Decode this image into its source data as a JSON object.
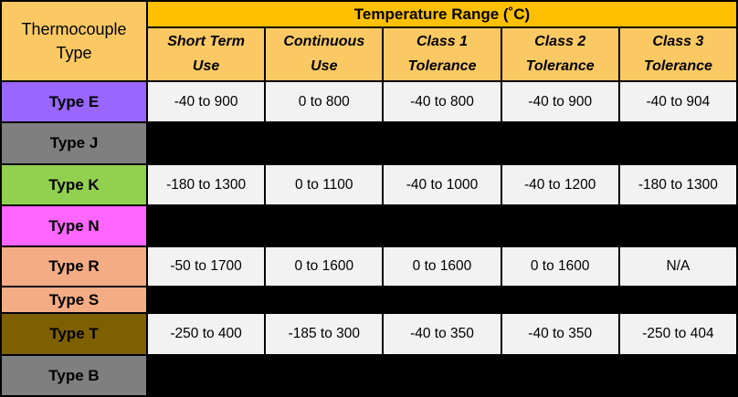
{
  "table": {
    "corner_header": "Thermocouple Type",
    "range_header": "Temperature Range (˚C)",
    "sub_headers": [
      "Short Term Use",
      "Continuous Use",
      "Class 1 Tolerance",
      "Class 2 Tolerance",
      "Class 3 Tolerance"
    ],
    "colors": {
      "range_header_bg": "#FFC000",
      "header_bg": "#FBC963",
      "data_cell_bg": "#F2F2F2",
      "blacked_out_bg": "#000000",
      "border": "#000000",
      "text": "#000000",
      "type_e_bg": "#9966FF",
      "type_j_bg": "#7F7F7F",
      "type_k_bg": "#92D050",
      "type_n_bg": "#FF66FF",
      "type_r_bg": "#F4AC84",
      "type_s_bg": "#F4AC84",
      "type_t_bg": "#7F6000",
      "type_b_bg": "#7F7F7F"
    },
    "rows": [
      {
        "type": "Type E",
        "type_bg": "#9966FF",
        "cell_bg": "#F2F2F2",
        "values": [
          "-40 to 900",
          "0 to 800",
          "-40 to 800",
          "-40 to 900",
          "-40 to 904"
        ]
      },
      {
        "type": "Type J",
        "type_bg": "#7F7F7F",
        "cell_bg": "#000000",
        "values": [
          "",
          "",
          "",
          "",
          ""
        ]
      },
      {
        "type": "Type K",
        "type_bg": "#92D050",
        "cell_bg": "#F2F2F2",
        "values": [
          "-180 to 1300",
          "0 to 1100",
          "-40 to 1000",
          "-40 to 1200",
          "-180 to 1300"
        ]
      },
      {
        "type": "Type N",
        "type_bg": "#FF66FF",
        "cell_bg": "#000000",
        "values": [
          "",
          "",
          "",
          "",
          ""
        ]
      },
      {
        "type": "Type R",
        "type_bg": "#F4AC84",
        "cell_bg": "#F2F2F2",
        "values": [
          "-50 to 1700",
          "0 to 1600",
          "0 to 1600",
          "0 to 1600",
          "N/A"
        ]
      },
      {
        "type": "Type S",
        "type_bg": "#F4AC84",
        "cell_bg": "#000000",
        "values": [
          "",
          "",
          "",
          "",
          ""
        ]
      },
      {
        "type": "Type T",
        "type_bg": "#7F6000",
        "cell_bg": "#F2F2F2",
        "values": [
          "-250 to 400",
          "-185 to 300",
          "-40 to 350",
          "-40 to 350",
          "-250 to 404"
        ]
      },
      {
        "type": "Type B",
        "type_bg": "#7F7F7F",
        "cell_bg": "#000000",
        "values": [
          "",
          "",
          "",
          "",
          ""
        ]
      }
    ]
  }
}
